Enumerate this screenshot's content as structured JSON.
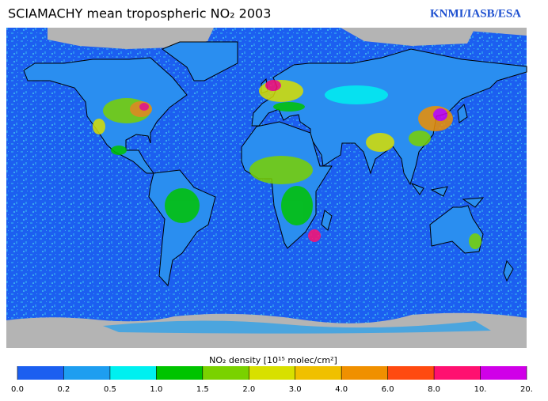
{
  "title": "SCIAMACHY mean tropospheric NO₂ 2003",
  "credit": "KNMI/IASB/ESA",
  "colorbar": {
    "label": "NO₂ density [10¹⁵ molec/cm²]",
    "ticks": [
      {
        "value": 0,
        "label": "0.0"
      },
      0.2,
      0.5,
      {
        "value": 1,
        "label": "1.0"
      },
      1.5,
      {
        "value": 2,
        "label": "2.0"
      },
      {
        "value": 3,
        "label": "3.0"
      },
      {
        "value": 4,
        "label": "4.0"
      },
      {
        "value": 6,
        "label": "6.0"
      },
      {
        "value": 8,
        "label": "8.0"
      },
      {
        "value": 10,
        "label": "10."
      },
      {
        "value": 20,
        "label": "20."
      }
    ],
    "colors": [
      "#1c5ff0",
      "#1e9ef0",
      "#00f0f0",
      "#00c400",
      "#7ad200",
      "#d8e000",
      "#f0c000",
      "#f09000",
      "#ff4a10",
      "#ff1070",
      "#d000e8"
    ]
  }
}
